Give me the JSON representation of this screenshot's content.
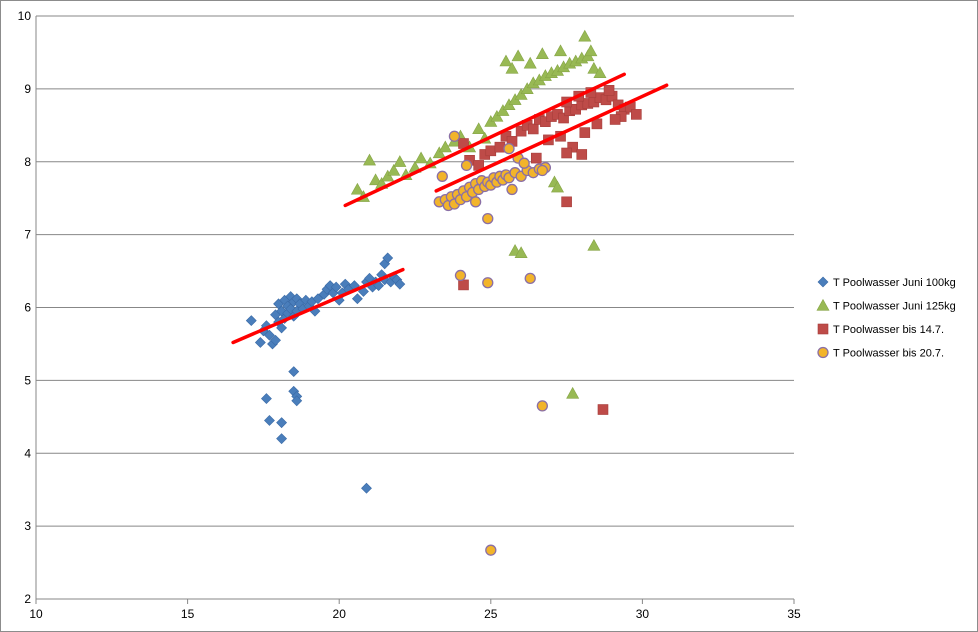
{
  "chart_data": {
    "type": "scatter",
    "title": "",
    "xlabel": "",
    "ylabel": "",
    "xlim": [
      10,
      35
    ],
    "ylim": [
      2,
      10
    ],
    "x_ticks": [
      10,
      15,
      20,
      25,
      30,
      35
    ],
    "y_ticks": [
      2,
      3,
      4,
      5,
      6,
      7,
      8,
      9,
      10
    ],
    "grid": "horizontal",
    "legend_position": "right",
    "series": [
      {
        "name": "T Poolwasser Juni 100kg",
        "marker": "diamond",
        "color": "#4a7ebb",
        "points": [
          [
            17.1,
            5.82
          ],
          [
            17.4,
            5.52
          ],
          [
            17.5,
            5.68
          ],
          [
            17.6,
            5.75
          ],
          [
            17.7,
            5.62
          ],
          [
            17.8,
            5.5
          ],
          [
            17.9,
            5.9
          ],
          [
            17.9,
            5.55
          ],
          [
            18.0,
            6.05
          ],
          [
            18.0,
            5.8
          ],
          [
            18.1,
            5.95
          ],
          [
            18.1,
            5.72
          ],
          [
            18.2,
            6.1
          ],
          [
            18.2,
            5.85
          ],
          [
            18.3,
            6.02
          ],
          [
            18.3,
            5.92
          ],
          [
            18.4,
            6.15
          ],
          [
            18.4,
            5.98
          ],
          [
            18.5,
            6.08
          ],
          [
            18.5,
            5.88
          ],
          [
            18.6,
            6.12
          ],
          [
            18.6,
            5.95
          ],
          [
            18.7,
            6.05
          ],
          [
            18.8,
            5.98
          ],
          [
            18.9,
            6.1
          ],
          [
            19.0,
            6.02
          ],
          [
            19.1,
            6.08
          ],
          [
            19.2,
            5.95
          ],
          [
            19.3,
            6.12
          ],
          [
            19.5,
            6.18
          ],
          [
            19.6,
            6.25
          ],
          [
            19.7,
            6.3
          ],
          [
            19.8,
            6.2
          ],
          [
            19.9,
            6.28
          ],
          [
            20.0,
            6.1
          ],
          [
            20.1,
            6.2
          ],
          [
            20.2,
            6.32
          ],
          [
            20.3,
            6.25
          ],
          [
            20.5,
            6.3
          ],
          [
            20.6,
            6.12
          ],
          [
            20.8,
            6.22
          ],
          [
            20.9,
            6.35
          ],
          [
            21.0,
            6.4
          ],
          [
            21.1,
            6.28
          ],
          [
            21.2,
            6.35
          ],
          [
            21.3,
            6.3
          ],
          [
            21.4,
            6.45
          ],
          [
            21.5,
            6.38
          ],
          [
            21.5,
            6.6
          ],
          [
            21.6,
            6.68
          ],
          [
            21.7,
            6.35
          ],
          [
            21.8,
            6.42
          ],
          [
            21.9,
            6.38
          ],
          [
            22.0,
            6.32
          ],
          [
            17.6,
            4.75
          ],
          [
            17.7,
            4.45
          ],
          [
            18.1,
            4.42
          ],
          [
            18.1,
            4.2
          ],
          [
            18.5,
            5.12
          ],
          [
            18.5,
            4.85
          ],
          [
            18.6,
            4.78
          ],
          [
            18.6,
            4.72
          ],
          [
            20.9,
            3.52
          ]
        ]
      },
      {
        "name": "T Poolwasser Juni 125kg",
        "marker": "triangle",
        "color": "#98b954",
        "points": [
          [
            20.6,
            7.62
          ],
          [
            20.8,
            7.52
          ],
          [
            21.0,
            8.02
          ],
          [
            21.2,
            7.75
          ],
          [
            21.4,
            7.7
          ],
          [
            21.6,
            7.8
          ],
          [
            21.8,
            7.88
          ],
          [
            22.0,
            8.0
          ],
          [
            22.2,
            7.82
          ],
          [
            22.5,
            7.92
          ],
          [
            22.7,
            8.05
          ],
          [
            23.0,
            7.98
          ],
          [
            23.3,
            8.12
          ],
          [
            23.5,
            8.2
          ],
          [
            23.8,
            8.28
          ],
          [
            24.0,
            8.35
          ],
          [
            24.3,
            8.2
          ],
          [
            24.6,
            8.45
          ],
          [
            24.8,
            8.32
          ],
          [
            25.0,
            8.55
          ],
          [
            25.2,
            8.62
          ],
          [
            25.4,
            8.7
          ],
          [
            25.6,
            8.78
          ],
          [
            25.8,
            8.85
          ],
          [
            26.0,
            8.92
          ],
          [
            26.2,
            9.0
          ],
          [
            26.4,
            9.08
          ],
          [
            26.6,
            9.12
          ],
          [
            26.8,
            9.18
          ],
          [
            27.0,
            9.22
          ],
          [
            27.2,
            9.25
          ],
          [
            27.4,
            9.3
          ],
          [
            27.6,
            9.35
          ],
          [
            27.8,
            9.38
          ],
          [
            28.0,
            9.42
          ],
          [
            28.2,
            9.45
          ],
          [
            28.4,
            9.28
          ],
          [
            28.6,
            9.22
          ],
          [
            25.5,
            9.38
          ],
          [
            25.7,
            9.28
          ],
          [
            25.9,
            9.45
          ],
          [
            26.3,
            9.35
          ],
          [
            26.7,
            9.48
          ],
          [
            27.3,
            9.52
          ],
          [
            28.1,
            9.72
          ],
          [
            28.3,
            9.52
          ],
          [
            25.8,
            6.78
          ],
          [
            26.0,
            6.75
          ],
          [
            28.4,
            6.85
          ],
          [
            27.7,
            4.82
          ],
          [
            27.1,
            7.72
          ],
          [
            27.2,
            7.65
          ]
        ]
      },
      {
        "name": "T Poolwasser bis 14.7.",
        "marker": "square",
        "color": "#be4b48",
        "points": [
          [
            24.1,
            8.25
          ],
          [
            24.3,
            8.02
          ],
          [
            24.6,
            7.95
          ],
          [
            24.8,
            8.1
          ],
          [
            25.0,
            8.15
          ],
          [
            25.3,
            8.2
          ],
          [
            25.5,
            8.35
          ],
          [
            25.7,
            8.28
          ],
          [
            26.0,
            8.42
          ],
          [
            26.2,
            8.5
          ],
          [
            26.4,
            8.45
          ],
          [
            26.6,
            8.58
          ],
          [
            26.8,
            8.55
          ],
          [
            27.0,
            8.62
          ],
          [
            27.2,
            8.65
          ],
          [
            27.4,
            8.6
          ],
          [
            27.6,
            8.7
          ],
          [
            27.8,
            8.72
          ],
          [
            28.0,
            8.78
          ],
          [
            28.2,
            8.8
          ],
          [
            28.4,
            8.82
          ],
          [
            28.6,
            8.88
          ],
          [
            28.8,
            8.85
          ],
          [
            29.0,
            8.9
          ],
          [
            29.2,
            8.78
          ],
          [
            29.4,
            8.72
          ],
          [
            29.6,
            8.75
          ],
          [
            29.8,
            8.65
          ],
          [
            27.5,
            8.82
          ],
          [
            27.9,
            8.9
          ],
          [
            28.3,
            8.95
          ],
          [
            28.9,
            8.98
          ],
          [
            29.3,
            8.62
          ],
          [
            27.3,
            8.35
          ],
          [
            27.7,
            8.2
          ],
          [
            28.1,
            8.4
          ],
          [
            28.5,
            8.52
          ],
          [
            29.1,
            8.58
          ],
          [
            26.9,
            8.3
          ],
          [
            27.5,
            8.12
          ],
          [
            27.5,
            7.45
          ],
          [
            28.0,
            8.1
          ],
          [
            26.5,
            8.05
          ],
          [
            24.1,
            6.31
          ],
          [
            28.7,
            4.6
          ]
        ]
      },
      {
        "name": "T Poolwasser bis 20.7.",
        "marker": "circle",
        "color": "#f2b42a",
        "stroke": "#8a6fa6",
        "points": [
          [
            23.3,
            7.45
          ],
          [
            23.5,
            7.48
          ],
          [
            23.6,
            7.4
          ],
          [
            23.7,
            7.52
          ],
          [
            23.8,
            7.42
          ],
          [
            23.9,
            7.55
          ],
          [
            24.0,
            7.48
          ],
          [
            24.1,
            7.6
          ],
          [
            24.2,
            7.52
          ],
          [
            24.3,
            7.65
          ],
          [
            24.4,
            7.58
          ],
          [
            24.5,
            7.7
          ],
          [
            24.6,
            7.62
          ],
          [
            24.7,
            7.74
          ],
          [
            24.8,
            7.66
          ],
          [
            24.9,
            7.72
          ],
          [
            25.0,
            7.68
          ],
          [
            25.1,
            7.78
          ],
          [
            25.2,
            7.72
          ],
          [
            25.3,
            7.8
          ],
          [
            25.4,
            7.75
          ],
          [
            25.5,
            7.82
          ],
          [
            25.6,
            7.78
          ],
          [
            25.8,
            7.85
          ],
          [
            26.0,
            7.8
          ],
          [
            26.2,
            7.88
          ],
          [
            26.4,
            7.85
          ],
          [
            26.6,
            7.9
          ],
          [
            26.8,
            7.92
          ],
          [
            23.8,
            8.35
          ],
          [
            24.2,
            7.95
          ],
          [
            24.5,
            7.45
          ],
          [
            25.6,
            8.18
          ],
          [
            25.7,
            7.62
          ],
          [
            25.9,
            8.05
          ],
          [
            26.1,
            7.98
          ],
          [
            26.7,
            7.88
          ],
          [
            24.9,
            7.22
          ],
          [
            23.4,
            7.8
          ],
          [
            24.0,
            6.44
          ],
          [
            24.9,
            6.34
          ],
          [
            26.3,
            6.4
          ],
          [
            26.7,
            4.65
          ],
          [
            25.0,
            2.67
          ]
        ]
      }
    ],
    "trendlines": [
      {
        "series": "T Poolwasser Juni 100kg",
        "x": [
          16.5,
          22.1
        ],
        "y": [
          5.52,
          6.52
        ]
      },
      {
        "series": "T Poolwasser Juni 125kg",
        "x": [
          20.2,
          29.4
        ],
        "y": [
          7.4,
          9.2
        ]
      },
      {
        "series": "T Poolwasser bis 14.7.",
        "x": [
          23.2,
          30.8
        ],
        "y": [
          7.6,
          9.05
        ]
      }
    ],
    "trendline_color": "#ff0000"
  }
}
